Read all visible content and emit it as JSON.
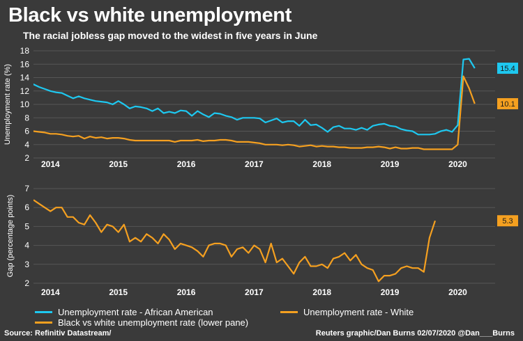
{
  "header": {
    "title": "Black vs white unemployment",
    "subtitle": "The racial jobless gap moved to the widest in five years in June"
  },
  "colors": {
    "african_american": "#1ec8f0",
    "white": "#f5a020",
    "gap": "#f5a020",
    "background": "#3a3a3a",
    "grid": "#565656"
  },
  "chart_data": [
    {
      "type": "line",
      "ylabel": "Unemployment rate (%)",
      "ylim": [
        2,
        18
      ],
      "yticks": [
        2,
        4,
        6,
        8,
        10,
        12,
        14,
        16,
        18
      ],
      "xlim": [
        2013.75,
        2020.55
      ],
      "xticks": [
        {
          "label": "2014",
          "x": 2014.0
        },
        {
          "label": "2015",
          "x": 2015.0
        },
        {
          "label": "2016",
          "x": 2016.0
        },
        {
          "label": "2017",
          "x": 2017.0
        },
        {
          "label": "2018",
          "x": 2018.0
        },
        {
          "label": "2019",
          "x": 2019.0
        },
        {
          "label": "2020",
          "x": 2020.0
        }
      ],
      "grid": true,
      "x_start": 2013.5,
      "x_step": 0.08333,
      "series": [
        {
          "name": "Unemployment rate - African American",
          "end_label": "15.4",
          "values": [
            12.6,
            13.0,
            13.0,
            13.0,
            12.6,
            12.3,
            12.0,
            11.8,
            11.7,
            11.3,
            10.9,
            11.2,
            10.9,
            10.7,
            10.5,
            10.4,
            10.3,
            10.0,
            10.5,
            10.0,
            9.4,
            9.7,
            9.6,
            9.4,
            9.0,
            9.4,
            8.7,
            8.9,
            8.7,
            9.1,
            9.0,
            8.3,
            9.0,
            8.5,
            8.1,
            8.7,
            8.6,
            8.3,
            8.1,
            7.7,
            8.0,
            8.0,
            8.0,
            7.9,
            7.3,
            7.6,
            7.9,
            7.3,
            7.5,
            7.5,
            6.8,
            7.7,
            6.9,
            7.0,
            6.5,
            5.9,
            6.6,
            6.8,
            6.4,
            6.4,
            6.2,
            6.5,
            6.2,
            6.8,
            7.0,
            7.1,
            6.8,
            6.7,
            6.3,
            6.1,
            6.0,
            5.5,
            5.5,
            5.5,
            5.6,
            6.0,
            6.2,
            5.9,
            6.9,
            16.7,
            16.8,
            15.4
          ]
        },
        {
          "name": "Unemployment rate - White",
          "end_label": "10.1",
          "values": [
            6.3,
            6.3,
            6.1,
            6.0,
            5.9,
            5.8,
            5.6,
            5.6,
            5.5,
            5.3,
            5.2,
            5.3,
            4.9,
            5.2,
            5.0,
            5.1,
            4.9,
            5.0,
            5.0,
            4.9,
            4.7,
            4.6,
            4.6,
            4.6,
            4.6,
            4.6,
            4.6,
            4.6,
            4.4,
            4.6,
            4.6,
            4.6,
            4.7,
            4.5,
            4.6,
            4.6,
            4.7,
            4.7,
            4.6,
            4.4,
            4.4,
            4.4,
            4.3,
            4.2,
            4.0,
            4.0,
            4.0,
            3.9,
            4.0,
            3.9,
            3.7,
            3.8,
            3.9,
            3.7,
            3.8,
            3.7,
            3.7,
            3.6,
            3.6,
            3.5,
            3.5,
            3.5,
            3.6,
            3.6,
            3.7,
            3.6,
            3.4,
            3.6,
            3.4,
            3.4,
            3.5,
            3.5,
            3.3,
            3.3,
            3.3,
            3.3,
            3.3,
            3.3,
            4.0,
            14.2,
            12.4,
            10.1
          ]
        }
      ]
    },
    {
      "type": "line",
      "ylabel": "Gap (percentage points)",
      "ylim": [
        2,
        7
      ],
      "yticks": [
        2,
        3,
        4,
        5,
        6,
        7
      ],
      "xlim": [
        2013.75,
        2020.55
      ],
      "xticks": [
        {
          "label": "2014",
          "x": 2014.0
        },
        {
          "label": "2015",
          "x": 2015.0
        },
        {
          "label": "2016",
          "x": 2016.0
        },
        {
          "label": "2017",
          "x": 2017.0
        },
        {
          "label": "2018",
          "x": 2018.0
        },
        {
          "label": "2019",
          "x": 2019.0
        },
        {
          "label": "2020",
          "x": 2020.0
        }
      ],
      "grid": true,
      "x_start": 2013.75,
      "x_step": 0.08333,
      "series": [
        {
          "name": "Black vs white unemployment rate (lower pane)",
          "end_label": "5.3",
          "values": [
            6.4,
            6.2,
            6.0,
            5.8,
            6.0,
            6.0,
            5.5,
            5.5,
            5.2,
            5.1,
            5.6,
            5.2,
            4.7,
            5.1,
            5.0,
            4.7,
            5.1,
            4.2,
            4.4,
            4.2,
            4.6,
            4.4,
            4.1,
            4.6,
            4.3,
            3.8,
            4.1,
            4.0,
            3.9,
            3.7,
            3.4,
            4.0,
            4.1,
            4.1,
            4.0,
            3.4,
            3.8,
            3.9,
            3.6,
            4.0,
            3.8,
            3.1,
            4.1,
            3.1,
            3.3,
            2.9,
            2.5,
            3.1,
            3.4,
            2.9,
            2.9,
            3.0,
            2.8,
            3.3,
            3.4,
            3.6,
            3.2,
            3.5,
            3.0,
            2.8,
            2.7,
            2.1,
            2.4,
            2.4,
            2.5,
            2.8,
            2.9,
            2.8,
            2.8,
            2.6,
            4.4,
            5.3
          ]
        }
      ]
    }
  ],
  "legend": {
    "item1": "Unemployment rate - African American",
    "item2": "Unemployment rate - White",
    "item3": "Black vs white unemployment rate (lower pane)"
  },
  "footer": {
    "source": "Source: Refinitiv Datastream/",
    "credit": "Reuters graphic/Dan Burns 02/07/2020 @Dan___Burns"
  }
}
